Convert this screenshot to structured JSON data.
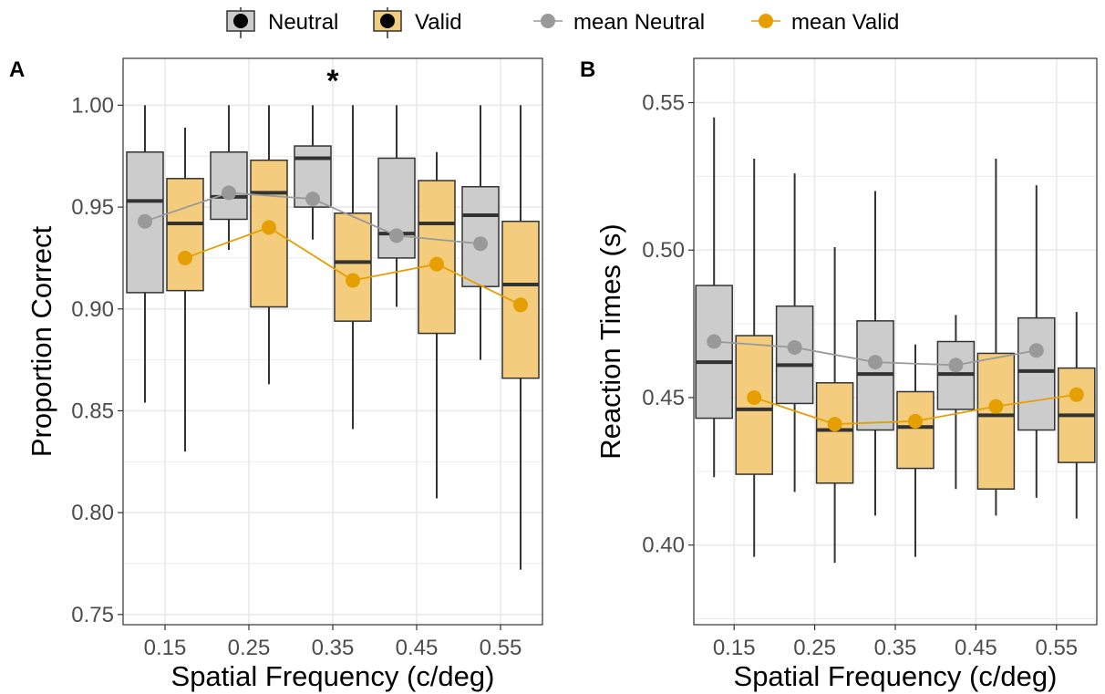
{
  "legend": {
    "items": [
      {
        "label": "Neutral",
        "kind": "box",
        "fill": "#cccccc"
      },
      {
        "label": "Valid",
        "kind": "box",
        "fill": "#f3cd7d"
      },
      {
        "label": "mean Neutral",
        "kind": "line",
        "color": "#999999"
      },
      {
        "label": "mean Valid",
        "kind": "line",
        "color": "#e69f00"
      }
    ]
  },
  "colors": {
    "neutral_box": "#cccccc",
    "valid_box": "#f3cd7d",
    "neutral_mean": "#999999",
    "valid_mean": "#e69f00",
    "box_stroke": "#333333",
    "grid": "#ebebeb",
    "panel_border": "#333333"
  },
  "chart_data": [
    {
      "type": "boxplot",
      "panel_label": "A",
      "xlabel": "Spatial Frequency (c/deg)",
      "ylabel": "Proportion Correct",
      "categories": [
        "0.15",
        "0.25",
        "0.35",
        "0.45",
        "0.55"
      ],
      "ylim": [
        0.745,
        1.023
      ],
      "yticks": [
        0.75,
        0.8,
        0.85,
        0.9,
        0.95,
        1.0
      ],
      "ytick_labels": [
        "0.75",
        "0.80",
        "0.85",
        "0.90",
        "0.95",
        "1.00"
      ],
      "grid": true,
      "annotations": [
        {
          "text": "*",
          "category": "0.35"
        }
      ],
      "series": [
        {
          "name": "Neutral",
          "boxes": [
            {
              "min": 0.854,
              "q1": 0.908,
              "median": 0.953,
              "q3": 0.977,
              "max": 1.0
            },
            {
              "min": 0.929,
              "q1": 0.944,
              "median": 0.955,
              "q3": 0.977,
              "max": 1.0
            },
            {
              "min": 0.934,
              "q1": 0.95,
              "median": 0.974,
              "q3": 0.98,
              "max": 1.0
            },
            {
              "min": 0.901,
              "q1": 0.925,
              "median": 0.937,
              "q3": 0.974,
              "max": 1.0
            },
            {
              "min": 0.875,
              "q1": 0.911,
              "median": 0.946,
              "q3": 0.96,
              "max": 1.0
            }
          ],
          "mean": [
            0.943,
            0.957,
            0.954,
            0.936,
            0.932
          ]
        },
        {
          "name": "Valid",
          "boxes": [
            {
              "min": 0.83,
              "q1": 0.909,
              "median": 0.942,
              "q3": 0.964,
              "max": 0.989
            },
            {
              "min": 0.863,
              "q1": 0.901,
              "median": 0.957,
              "q3": 0.973,
              "max": 1.0
            },
            {
              "min": 0.841,
              "q1": 0.894,
              "median": 0.923,
              "q3": 0.947,
              "max": 1.0
            },
            {
              "min": 0.807,
              "q1": 0.888,
              "median": 0.942,
              "q3": 0.963,
              "max": 0.977
            },
            {
              "min": 0.772,
              "q1": 0.866,
              "median": 0.912,
              "q3": 0.943,
              "max": 1.0
            }
          ],
          "mean": [
            0.925,
            0.94,
            0.914,
            0.922,
            0.902
          ]
        }
      ]
    },
    {
      "type": "boxplot",
      "panel_label": "B",
      "xlabel": "Spatial Frequency (c/deg)",
      "ylabel": "Reaction Times (s)",
      "categories": [
        "0.15",
        "0.25",
        "0.35",
        "0.45",
        "0.55"
      ],
      "ylim": [
        0.373,
        0.565
      ],
      "yticks": [
        0.4,
        0.45,
        0.5,
        0.55
      ],
      "ytick_labels": [
        "0.40",
        "0.45",
        "0.50",
        "0.55"
      ],
      "grid": true,
      "annotations": [],
      "series": [
        {
          "name": "Neutral",
          "boxes": [
            {
              "min": 0.423,
              "q1": 0.443,
              "median": 0.462,
              "q3": 0.488,
              "max": 0.545
            },
            {
              "min": 0.418,
              "q1": 0.448,
              "median": 0.461,
              "q3": 0.481,
              "max": 0.526
            },
            {
              "min": 0.41,
              "q1": 0.439,
              "median": 0.458,
              "q3": 0.476,
              "max": 0.52
            },
            {
              "min": 0.419,
              "q1": 0.446,
              "median": 0.458,
              "q3": 0.469,
              "max": 0.478
            },
            {
              "min": 0.416,
              "q1": 0.439,
              "median": 0.459,
              "q3": 0.477,
              "max": 0.522
            }
          ],
          "mean": [
            0.469,
            0.467,
            0.462,
            0.461,
            0.466
          ]
        },
        {
          "name": "Valid",
          "boxes": [
            {
              "min": 0.396,
              "q1": 0.424,
              "median": 0.446,
              "q3": 0.471,
              "max": 0.531
            },
            {
              "min": 0.394,
              "q1": 0.421,
              "median": 0.439,
              "q3": 0.455,
              "max": 0.501
            },
            {
              "min": 0.396,
              "q1": 0.426,
              "median": 0.44,
              "q3": 0.452,
              "max": 0.468
            },
            {
              "min": 0.41,
              "q1": 0.419,
              "median": 0.444,
              "q3": 0.465,
              "max": 0.531
            },
            {
              "min": 0.409,
              "q1": 0.428,
              "median": 0.444,
              "q3": 0.46,
              "max": 0.479
            }
          ],
          "mean": [
            0.45,
            0.441,
            0.442,
            0.447,
            0.451
          ]
        }
      ]
    }
  ]
}
